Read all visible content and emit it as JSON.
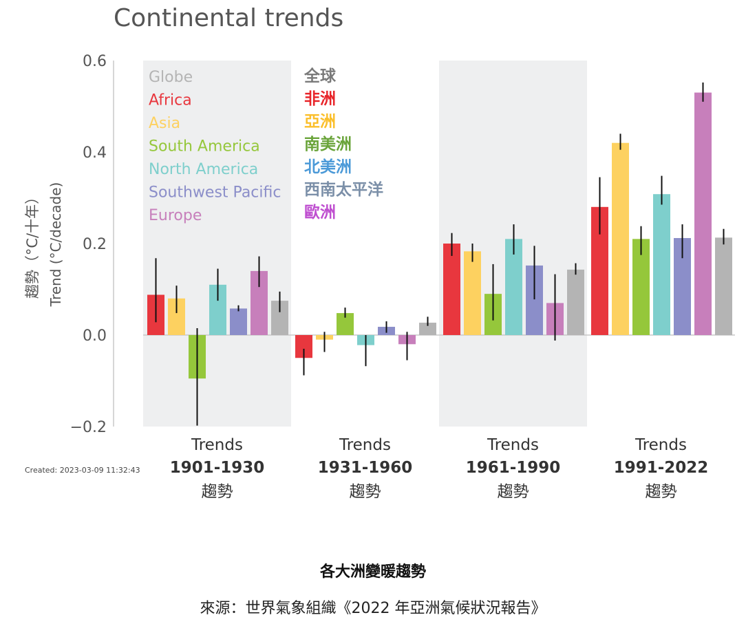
{
  "chart_data": {
    "type": "bar",
    "title": "Continental trends",
    "ylabel_zh": "趨勢（°C/十年）",
    "ylabel_en": "Trend (°C/decade)",
    "ylim": [
      -0.2,
      0.6
    ],
    "yticks": [
      {
        "value": 0.6,
        "label": "0.6"
      },
      {
        "value": 0.4,
        "label": "0.4"
      },
      {
        "value": 0.2,
        "label": "0.2"
      },
      {
        "value": 0.0,
        "label": "0.0"
      },
      {
        "value": -0.2,
        "label": "−0.2"
      }
    ],
    "categories": [
      {
        "line1": "Trends",
        "line2": "1901-1930",
        "line3": "趨勢",
        "shaded": true
      },
      {
        "line1": "Trends",
        "line2": "1931-1960",
        "line3": "趨勢",
        "shaded": false
      },
      {
        "line1": "Trends",
        "line2": "1961-1990",
        "line3": "趨勢",
        "shaded": true
      },
      {
        "line1": "Trends",
        "line2": "1991-2022",
        "line3": "趨勢",
        "shaded": false
      }
    ],
    "series": [
      {
        "name": "Africa",
        "name_zh": "非洲",
        "color": "#e8373e",
        "values": [
          0.088,
          -0.05,
          0.2,
          0.28
        ],
        "error_low": [
          0.028,
          -0.088,
          0.173,
          0.22
        ],
        "error_high": [
          0.168,
          -0.03,
          0.223,
          0.345
        ]
      },
      {
        "name": "Asia",
        "name_zh": "亞洲",
        "color": "#fdd160",
        "values": [
          0.08,
          -0.01,
          0.183,
          0.42
        ],
        "error_low": [
          0.048,
          -0.037,
          0.16,
          0.405
        ],
        "error_high": [
          0.108,
          0.007,
          0.2,
          0.44
        ]
      },
      {
        "name": "South America",
        "name_zh": "南美洲",
        "color": "#95c73b",
        "values": [
          -0.095,
          0.048,
          0.09,
          0.21
        ],
        "error_low": [
          -0.198,
          0.038,
          0.032,
          0.175
        ],
        "error_high": [
          0.015,
          0.06,
          0.155,
          0.238
        ]
      },
      {
        "name": "North America",
        "name_zh": "北美洲",
        "color": "#7ecfcc",
        "values": [
          0.11,
          -0.022,
          0.21,
          0.308
        ],
        "error_low": [
          0.075,
          -0.068,
          0.176,
          0.285
        ],
        "error_high": [
          0.145,
          0.0,
          0.242,
          0.348
        ]
      },
      {
        "name": "Southwest Pacific",
        "name_zh": "西南太平洋",
        "color": "#8b8ec9",
        "values": [
          0.058,
          0.018,
          0.152,
          0.212
        ],
        "error_low": [
          0.052,
          0.005,
          0.078,
          0.168
        ],
        "error_high": [
          0.065,
          0.03,
          0.195,
          0.242
        ]
      },
      {
        "name": "Europe",
        "name_zh": "歐洲",
        "color": "#c77fbb",
        "values": [
          0.14,
          -0.02,
          0.07,
          0.53
        ],
        "error_low": [
          0.105,
          -0.055,
          -0.012,
          0.51
        ],
        "error_high": [
          0.172,
          0.007,
          0.133,
          0.552
        ]
      },
      {
        "name": "Globe",
        "name_zh": "全球",
        "color": "#b4b4b4",
        "values": [
          0.075,
          0.027,
          0.143,
          0.213
        ],
        "error_low": [
          0.05,
          0.02,
          0.132,
          0.198
        ],
        "error_high": [
          0.095,
          0.04,
          0.157,
          0.232
        ]
      }
    ],
    "legend_en": [
      {
        "label": "Globe",
        "color": "#b4b4b4"
      },
      {
        "label": "Africa",
        "color": "#e8373e"
      },
      {
        "label": "Asia",
        "color": "#fdd160"
      },
      {
        "label": "South America",
        "color": "#95c73b"
      },
      {
        "label": "North America",
        "color": "#7ecfcc"
      },
      {
        "label": "Southwest Pacific",
        "color": "#8b8ec9"
      },
      {
        "label": "Europe",
        "color": "#c77fbb"
      }
    ],
    "legend_zh": [
      {
        "label": "全球",
        "color": "#7a7a7a"
      },
      {
        "label": "非洲",
        "color": "#e8252a"
      },
      {
        "label": "亞洲",
        "color": "#fbbf2b"
      },
      {
        "label": "南美洲",
        "color": "#6aa43a"
      },
      {
        "label": "北美洲",
        "color": "#4c9ad8"
      },
      {
        "label": "西南太平洋",
        "color": "#7b8fa8"
      },
      {
        "label": "歐洲",
        "color": "#bf4fd0"
      }
    ],
    "legend_position": "top-left"
  },
  "created_label": "Created: 2023-03-09 11:32:43",
  "caption": {
    "title": "各大洲變暖趨勢",
    "source": "來源：世界氣象組織《2022 年亞洲氣候狀況報告》"
  }
}
